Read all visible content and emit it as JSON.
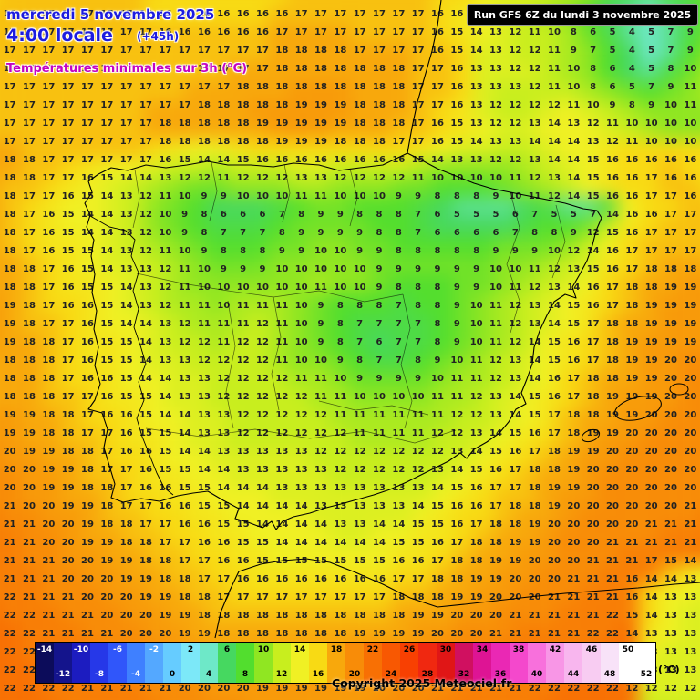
{
  "header": {
    "date_line": "mercredi 5 novembre 2025",
    "time_line": "4:00 locale",
    "offset_label": "(+45h)",
    "subtitle": "Températures minimales sur 3h (°C)",
    "date_color": "#1c1ce0",
    "subtitle_color": "#c304c3"
  },
  "run_box": {
    "label": "Run GFS 6Z du lundi 3 novembre 2025",
    "bg": "#000000",
    "text_color": "#ffffff"
  },
  "copyright": "Copyright 2025 Meteociel.fr",
  "legend": {
    "unit": "(°C)",
    "top_labels": [
      -14,
      -10,
      -6,
      -2,
      2,
      6,
      10,
      14,
      18,
      22,
      26,
      30,
      34,
      38,
      42,
      46,
      50
    ],
    "bottom_labels": [
      -12,
      -8,
      -4,
      0,
      4,
      8,
      12,
      16,
      20,
      24,
      28,
      32,
      36,
      40,
      44,
      48,
      52
    ],
    "scale": [
      {
        "t": -14,
        "c": "#0c0c5a"
      },
      {
        "t": -12,
        "c": "#14148c"
      },
      {
        "t": -10,
        "c": "#1c1cc0"
      },
      {
        "t": -8,
        "c": "#2638e8"
      },
      {
        "t": -6,
        "c": "#3056fa"
      },
      {
        "t": -4,
        "c": "#3f80ff"
      },
      {
        "t": -2,
        "c": "#54a8ff"
      },
      {
        "t": 0,
        "c": "#66ccff"
      },
      {
        "t": 2,
        "c": "#7ce8f8"
      },
      {
        "t": 4,
        "c": "#6ee8c8"
      },
      {
        "t": 6,
        "c": "#46d860"
      },
      {
        "t": 8,
        "c": "#52de2e"
      },
      {
        "t": 10,
        "c": "#90e622"
      },
      {
        "t": 12,
        "c": "#c8ee1e"
      },
      {
        "t": 14,
        "c": "#f0f024"
      },
      {
        "t": 16,
        "c": "#f8da14"
      },
      {
        "t": 18,
        "c": "#f8a80c"
      },
      {
        "t": 20,
        "c": "#f88c08"
      },
      {
        "t": 22,
        "c": "#f87004"
      },
      {
        "t": 24,
        "c": "#f85802"
      },
      {
        "t": 26,
        "c": "#f84002"
      },
      {
        "t": 28,
        "c": "#f02810"
      },
      {
        "t": 30,
        "c": "#e01616"
      },
      {
        "t": 32,
        "c": "#d01060"
      },
      {
        "t": 34,
        "c": "#de1494"
      },
      {
        "t": 36,
        "c": "#ea28b4"
      },
      {
        "t": 38,
        "c": "#f448cc"
      },
      {
        "t": 40,
        "c": "#f870dc"
      },
      {
        "t": 42,
        "c": "#f896e6"
      },
      {
        "t": 44,
        "c": "#f8b6ee"
      },
      {
        "t": 46,
        "c": "#f8ccf2"
      },
      {
        "t": 48,
        "c": "#f8e2f8"
      },
      {
        "t": 50,
        "c": "#ffffff"
      },
      {
        "t": 52,
        "c": "#ffffff"
      }
    ]
  },
  "map": {
    "cols": 36,
    "rows": 38,
    "values": [
      [
        16,
        17,
        17,
        17,
        17,
        17,
        17,
        17,
        16,
        16,
        16,
        16,
        16,
        16,
        16,
        17,
        17,
        17,
        17,
        17,
        17,
        17,
        16,
        16,
        14,
        13,
        13,
        12,
        11,
        10,
        7,
        6,
        5,
        7,
        7,
        9
      ],
      [
        17,
        17,
        17,
        17,
        17,
        17,
        17,
        17,
        16,
        16,
        16,
        16,
        16,
        16,
        17,
        17,
        17,
        17,
        17,
        17,
        17,
        17,
        16,
        15,
        14,
        13,
        12,
        11,
        10,
        8,
        6,
        5,
        4,
        5,
        7,
        9
      ],
      [
        17,
        17,
        17,
        17,
        17,
        17,
        17,
        17,
        17,
        17,
        17,
        17,
        17,
        17,
        18,
        18,
        18,
        18,
        17,
        17,
        17,
        17,
        16,
        15,
        14,
        13,
        12,
        12,
        11,
        9,
        7,
        5,
        4,
        5,
        7,
        9
      ],
      [
        17,
        17,
        17,
        17,
        17,
        17,
        17,
        17,
        17,
        17,
        17,
        17,
        17,
        17,
        18,
        18,
        18,
        18,
        18,
        18,
        18,
        17,
        17,
        16,
        13,
        13,
        12,
        12,
        11,
        10,
        8,
        6,
        4,
        5,
        8,
        10
      ],
      [
        17,
        17,
        17,
        17,
        17,
        17,
        17,
        17,
        17,
        17,
        17,
        17,
        18,
        18,
        18,
        18,
        18,
        18,
        18,
        18,
        18,
        17,
        17,
        16,
        13,
        13,
        13,
        12,
        11,
        10,
        8,
        6,
        5,
        7,
        9,
        11
      ],
      [
        17,
        17,
        17,
        17,
        17,
        17,
        17,
        17,
        17,
        17,
        18,
        18,
        18,
        18,
        18,
        19,
        19,
        19,
        18,
        18,
        18,
        17,
        17,
        16,
        13,
        12,
        12,
        12,
        12,
        11,
        10,
        9,
        8,
        9,
        10,
        11
      ],
      [
        17,
        17,
        17,
        17,
        17,
        17,
        17,
        17,
        18,
        18,
        18,
        18,
        18,
        19,
        19,
        19,
        19,
        19,
        18,
        18,
        18,
        17,
        16,
        15,
        13,
        12,
        12,
        13,
        14,
        13,
        12,
        11,
        10,
        10,
        10,
        10
      ],
      [
        17,
        17,
        17,
        17,
        17,
        17,
        17,
        17,
        18,
        18,
        18,
        18,
        18,
        18,
        19,
        19,
        19,
        18,
        18,
        18,
        17,
        17,
        16,
        15,
        14,
        13,
        13,
        14,
        14,
        14,
        13,
        12,
        11,
        10,
        10,
        10
      ],
      [
        18,
        18,
        17,
        17,
        17,
        17,
        17,
        17,
        16,
        15,
        14,
        14,
        15,
        16,
        16,
        16,
        16,
        16,
        16,
        16,
        16,
        15,
        14,
        13,
        13,
        12,
        12,
        13,
        14,
        14,
        15,
        16,
        16,
        16,
        16,
        16
      ],
      [
        18,
        18,
        17,
        17,
        16,
        15,
        14,
        14,
        13,
        12,
        12,
        11,
        12,
        12,
        12,
        13,
        13,
        12,
        12,
        12,
        12,
        11,
        10,
        10,
        10,
        10,
        11,
        12,
        13,
        14,
        15,
        16,
        16,
        17,
        16,
        16
      ],
      [
        18,
        17,
        17,
        16,
        15,
        14,
        13,
        12,
        11,
        10,
        9,
        9,
        10,
        10,
        10,
        11,
        11,
        10,
        10,
        10,
        9,
        9,
        8,
        8,
        8,
        9,
        10,
        11,
        12,
        14,
        15,
        16,
        16,
        17,
        17,
        16
      ],
      [
        18,
        17,
        16,
        15,
        14,
        14,
        13,
        12,
        10,
        9,
        8,
        6,
        6,
        6,
        7,
        8,
        9,
        9,
        8,
        8,
        8,
        7,
        6,
        5,
        5,
        5,
        6,
        7,
        5,
        5,
        7,
        14,
        16,
        16,
        17,
        17
      ],
      [
        18,
        17,
        16,
        15,
        14,
        14,
        13,
        12,
        10,
        9,
        8,
        7,
        7,
        7,
        8,
        9,
        9,
        9,
        9,
        8,
        8,
        7,
        6,
        6,
        6,
        6,
        7,
        8,
        8,
        9,
        12,
        15,
        16,
        17,
        17,
        17
      ],
      [
        18,
        17,
        16,
        15,
        15,
        14,
        13,
        12,
        11,
        10,
        9,
        8,
        8,
        8,
        9,
        9,
        10,
        10,
        9,
        9,
        8,
        8,
        8,
        8,
        8,
        9,
        9,
        9,
        10,
        12,
        14,
        16,
        17,
        17,
        17,
        17
      ],
      [
        18,
        18,
        17,
        16,
        15,
        14,
        13,
        13,
        12,
        11,
        10,
        9,
        9,
        9,
        10,
        10,
        10,
        10,
        10,
        9,
        9,
        9,
        9,
        9,
        9,
        10,
        10,
        11,
        12,
        13,
        15,
        16,
        17,
        18,
        18,
        18
      ],
      [
        18,
        18,
        17,
        16,
        15,
        15,
        14,
        13,
        12,
        11,
        10,
        10,
        10,
        10,
        10,
        10,
        11,
        10,
        10,
        9,
        8,
        8,
        8,
        9,
        9,
        10,
        11,
        12,
        13,
        14,
        16,
        17,
        18,
        18,
        19,
        19
      ],
      [
        19,
        18,
        17,
        16,
        16,
        15,
        14,
        13,
        12,
        11,
        11,
        10,
        11,
        11,
        11,
        10,
        9,
        8,
        8,
        8,
        7,
        8,
        8,
        9,
        10,
        11,
        12,
        13,
        14,
        15,
        16,
        17,
        18,
        19,
        19,
        19
      ],
      [
        19,
        18,
        17,
        17,
        16,
        15,
        14,
        14,
        13,
        12,
        11,
        11,
        11,
        12,
        11,
        10,
        9,
        8,
        7,
        7,
        7,
        7,
        8,
        9,
        10,
        11,
        12,
        13,
        14,
        15,
        17,
        18,
        18,
        19,
        19,
        19
      ],
      [
        19,
        18,
        18,
        17,
        16,
        15,
        15,
        14,
        13,
        12,
        12,
        11,
        12,
        12,
        11,
        10,
        9,
        8,
        7,
        6,
        7,
        7,
        8,
        9,
        10,
        11,
        12,
        14,
        15,
        16,
        17,
        18,
        19,
        19,
        19,
        19
      ],
      [
        18,
        18,
        18,
        17,
        16,
        15,
        15,
        14,
        13,
        13,
        12,
        12,
        12,
        12,
        11,
        10,
        10,
        9,
        8,
        7,
        7,
        8,
        9,
        10,
        11,
        12,
        13,
        14,
        15,
        16,
        17,
        18,
        19,
        19,
        20,
        20
      ],
      [
        18,
        18,
        18,
        17,
        16,
        16,
        15,
        14,
        14,
        13,
        13,
        12,
        12,
        12,
        12,
        11,
        11,
        10,
        9,
        9,
        9,
        9,
        10,
        11,
        11,
        12,
        13,
        14,
        16,
        17,
        18,
        18,
        19,
        19,
        20,
        20
      ],
      [
        18,
        18,
        18,
        17,
        17,
        16,
        15,
        15,
        14,
        13,
        13,
        12,
        12,
        12,
        12,
        12,
        11,
        11,
        10,
        10,
        10,
        10,
        11,
        11,
        12,
        13,
        14,
        15,
        16,
        17,
        18,
        19,
        19,
        19,
        20,
        20
      ],
      [
        19,
        19,
        18,
        18,
        17,
        16,
        16,
        15,
        14,
        14,
        13,
        13,
        12,
        12,
        12,
        12,
        12,
        11,
        11,
        11,
        11,
        11,
        11,
        12,
        12,
        13,
        14,
        15,
        17,
        18,
        18,
        19,
        19,
        20,
        20,
        20
      ],
      [
        19,
        19,
        18,
        18,
        17,
        17,
        16,
        15,
        15,
        14,
        13,
        13,
        12,
        12,
        12,
        12,
        12,
        12,
        11,
        11,
        11,
        11,
        12,
        12,
        13,
        14,
        15,
        16,
        17,
        18,
        19,
        19,
        20,
        20,
        20,
        20
      ],
      [
        20,
        19,
        19,
        18,
        18,
        17,
        16,
        16,
        15,
        14,
        14,
        13,
        13,
        13,
        13,
        13,
        12,
        12,
        12,
        12,
        12,
        12,
        12,
        13,
        14,
        15,
        16,
        17,
        18,
        19,
        19,
        20,
        20,
        20,
        20,
        20
      ],
      [
        20,
        20,
        19,
        19,
        18,
        17,
        17,
        16,
        15,
        15,
        14,
        14,
        13,
        13,
        13,
        13,
        13,
        12,
        12,
        12,
        12,
        12,
        13,
        14,
        15,
        16,
        17,
        18,
        18,
        19,
        20,
        20,
        20,
        20,
        20,
        20
      ],
      [
        20,
        20,
        19,
        19,
        18,
        18,
        17,
        16,
        16,
        15,
        15,
        14,
        14,
        14,
        13,
        13,
        13,
        13,
        13,
        13,
        13,
        13,
        14,
        15,
        16,
        17,
        17,
        18,
        19,
        19,
        20,
        20,
        20,
        20,
        20,
        20
      ],
      [
        21,
        20,
        20,
        19,
        19,
        18,
        17,
        17,
        16,
        16,
        15,
        15,
        14,
        14,
        14,
        14,
        13,
        13,
        13,
        13,
        13,
        14,
        15,
        16,
        16,
        17,
        18,
        18,
        19,
        20,
        20,
        20,
        20,
        20,
        20,
        21
      ],
      [
        21,
        21,
        20,
        20,
        19,
        18,
        18,
        17,
        17,
        16,
        16,
        15,
        15,
        14,
        14,
        14,
        14,
        13,
        13,
        14,
        14,
        15,
        15,
        16,
        17,
        18,
        18,
        19,
        20,
        20,
        20,
        20,
        20,
        21,
        21,
        21
      ],
      [
        21,
        21,
        20,
        20,
        19,
        19,
        18,
        18,
        17,
        17,
        16,
        16,
        15,
        15,
        14,
        14,
        14,
        14,
        14,
        14,
        15,
        15,
        16,
        17,
        18,
        18,
        19,
        19,
        20,
        20,
        20,
        21,
        21,
        21,
        21,
        21
      ],
      [
        21,
        21,
        21,
        20,
        20,
        19,
        19,
        18,
        18,
        17,
        17,
        16,
        16,
        15,
        15,
        15,
        15,
        15,
        15,
        15,
        16,
        16,
        17,
        18,
        18,
        19,
        19,
        20,
        20,
        20,
        21,
        21,
        21,
        17,
        15,
        14
      ],
      [
        21,
        21,
        21,
        20,
        20,
        20,
        19,
        19,
        18,
        18,
        17,
        17,
        16,
        16,
        16,
        16,
        16,
        16,
        16,
        16,
        17,
        17,
        18,
        18,
        19,
        19,
        20,
        20,
        20,
        21,
        21,
        21,
        16,
        14,
        14,
        13
      ],
      [
        22,
        21,
        21,
        21,
        20,
        20,
        20,
        19,
        19,
        18,
        18,
        17,
        17,
        17,
        17,
        17,
        17,
        17,
        17,
        17,
        18,
        18,
        18,
        19,
        19,
        20,
        20,
        20,
        21,
        21,
        21,
        21,
        16,
        14,
        13,
        13
      ],
      [
        22,
        22,
        21,
        21,
        21,
        20,
        20,
        20,
        19,
        19,
        18,
        18,
        18,
        18,
        18,
        18,
        18,
        18,
        18,
        18,
        18,
        19,
        19,
        20,
        20,
        20,
        21,
        21,
        21,
        21,
        21,
        22,
        15,
        14,
        13,
        13
      ],
      [
        22,
        22,
        21,
        21,
        21,
        21,
        20,
        20,
        20,
        19,
        19,
        18,
        18,
        18,
        18,
        18,
        18,
        18,
        19,
        19,
        19,
        19,
        20,
        20,
        20,
        21,
        21,
        21,
        21,
        21,
        22,
        22,
        14,
        13,
        13,
        13
      ],
      [
        22,
        22,
        22,
        21,
        21,
        21,
        21,
        20,
        20,
        20,
        19,
        19,
        19,
        19,
        19,
        19,
        19,
        19,
        19,
        19,
        19,
        20,
        20,
        20,
        21,
        21,
        21,
        21,
        21,
        22,
        22,
        22,
        13,
        13,
        13,
        13
      ],
      [
        22,
        22,
        22,
        21,
        21,
        21,
        21,
        21,
        20,
        20,
        20,
        19,
        19,
        19,
        19,
        19,
        19,
        19,
        19,
        19,
        20,
        20,
        20,
        21,
        21,
        21,
        21,
        21,
        22,
        22,
        22,
        22,
        13,
        13,
        13,
        13
      ],
      [
        22,
        22,
        22,
        22,
        21,
        21,
        21,
        21,
        21,
        20,
        20,
        20,
        20,
        19,
        19,
        19,
        19,
        19,
        19,
        20,
        20,
        20,
        21,
        21,
        21,
        21,
        21,
        22,
        22,
        22,
        22,
        22,
        12,
        12,
        12,
        12
      ]
    ]
  }
}
